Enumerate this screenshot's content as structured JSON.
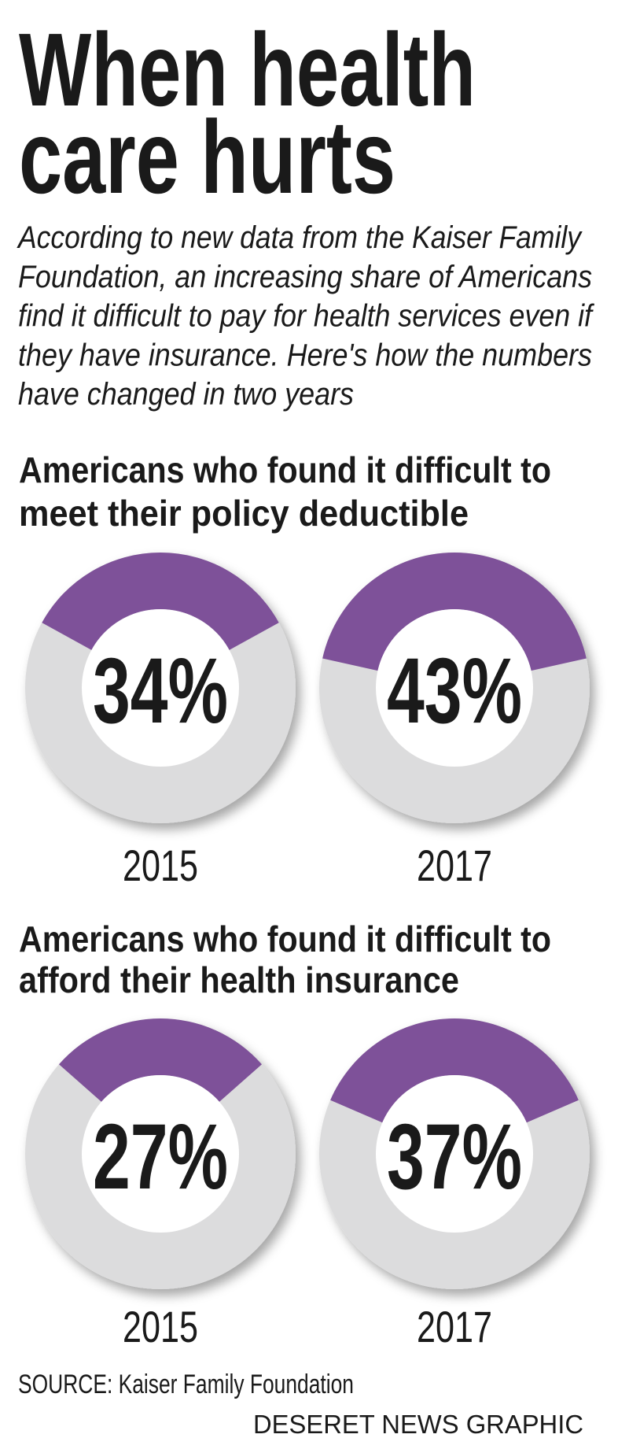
{
  "title": [
    "When health",
    "care hurts"
  ],
  "subtitle": [
    "According to new data from the Kaiser Family",
    "Foundation, an increasing share of Americans",
    "find it difficult to pay for health services even if",
    "they have insurance. Here's how the numbers",
    "have changed in two years"
  ],
  "chart_data": [
    {
      "type": "donut",
      "title": [
        "Americans who found it difficult to",
        "meet their policy deductible"
      ],
      "categories": [
        "2015",
        "2017"
      ],
      "values": [
        34,
        43
      ],
      "value_labels": [
        "34%",
        "43%"
      ],
      "color": "#7e5199"
    },
    {
      "type": "donut",
      "title": [
        "Americans who found it difficult to",
        "afford their health insurance"
      ],
      "categories": [
        "2015",
        "2017"
      ],
      "values": [
        27,
        37
      ],
      "value_labels": [
        "27%",
        "37%"
      ],
      "color": "#7e5199"
    }
  ],
  "source": "SOURCE: Kaiser Family Foundation",
  "credit": "DESERET NEWS GRAPHIC"
}
